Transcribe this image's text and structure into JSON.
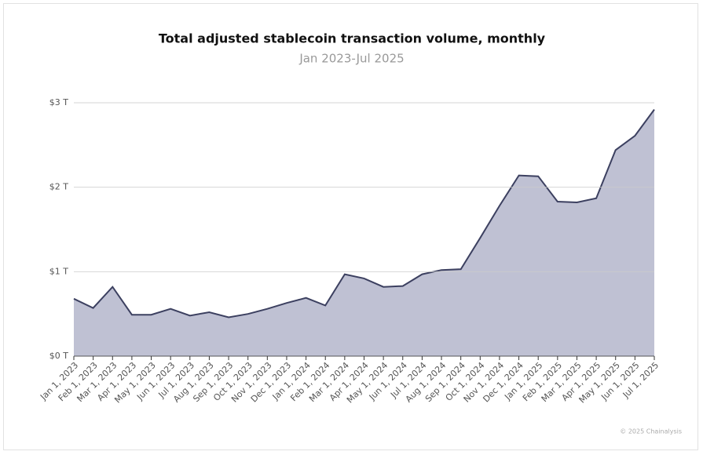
{
  "chart_data": {
    "type": "area",
    "title": "Total adjusted stablecoin transaction volume, monthly",
    "subtitle": "Jan 2023-Jul 2025",
    "credit": "© 2025 Chainalysis",
    "x": [
      "Jan 1, 2023",
      "Feb 1, 2023",
      "Mar 1, 2023",
      "Apr 1, 2023",
      "May 1, 2023",
      "Jun 1, 2023",
      "Jul 1, 2023",
      "Aug 1, 2023",
      "Sep 1, 2023",
      "Oct 1, 2023",
      "Nov 1, 2023",
      "Dec 1, 2023",
      "Jan 1, 2024",
      "Feb 1, 2024",
      "Mar 1, 2024",
      "Apr 1, 2024",
      "May 1, 2024",
      "Jun 1, 2024",
      "Jul 1, 2024",
      "Aug 1, 2024",
      "Sep 1, 2024",
      "Oct 1, 2024",
      "Nov 1, 2024",
      "Dec 1, 2024",
      "Jan 1, 2025",
      "Feb 1, 2025",
      "Mar 1, 2025",
      "Apr 1, 2025",
      "May 1, 2025",
      "Jun 1, 2025",
      "Jul 1, 2025"
    ],
    "values": [
      0.68,
      0.57,
      0.82,
      0.49,
      0.49,
      0.56,
      0.48,
      0.52,
      0.46,
      0.5,
      0.56,
      0.63,
      0.69,
      0.6,
      0.97,
      0.92,
      0.82,
      0.83,
      0.97,
      1.02,
      1.03,
      1.4,
      1.78,
      2.14,
      2.13,
      1.83,
      1.82,
      1.87,
      2.44,
      2.61,
      2.92
    ],
    "color": "#3c4060",
    "fill": "#bfc1d3",
    "ylim": [
      0,
      3
    ],
    "yticks": [
      {
        "value": 0,
        "label": "$0 T"
      },
      {
        "value": 1,
        "label": "$1 T"
      },
      {
        "value": 2,
        "label": "$2 T"
      },
      {
        "value": 3,
        "label": "$3 T"
      }
    ],
    "grid": true
  }
}
